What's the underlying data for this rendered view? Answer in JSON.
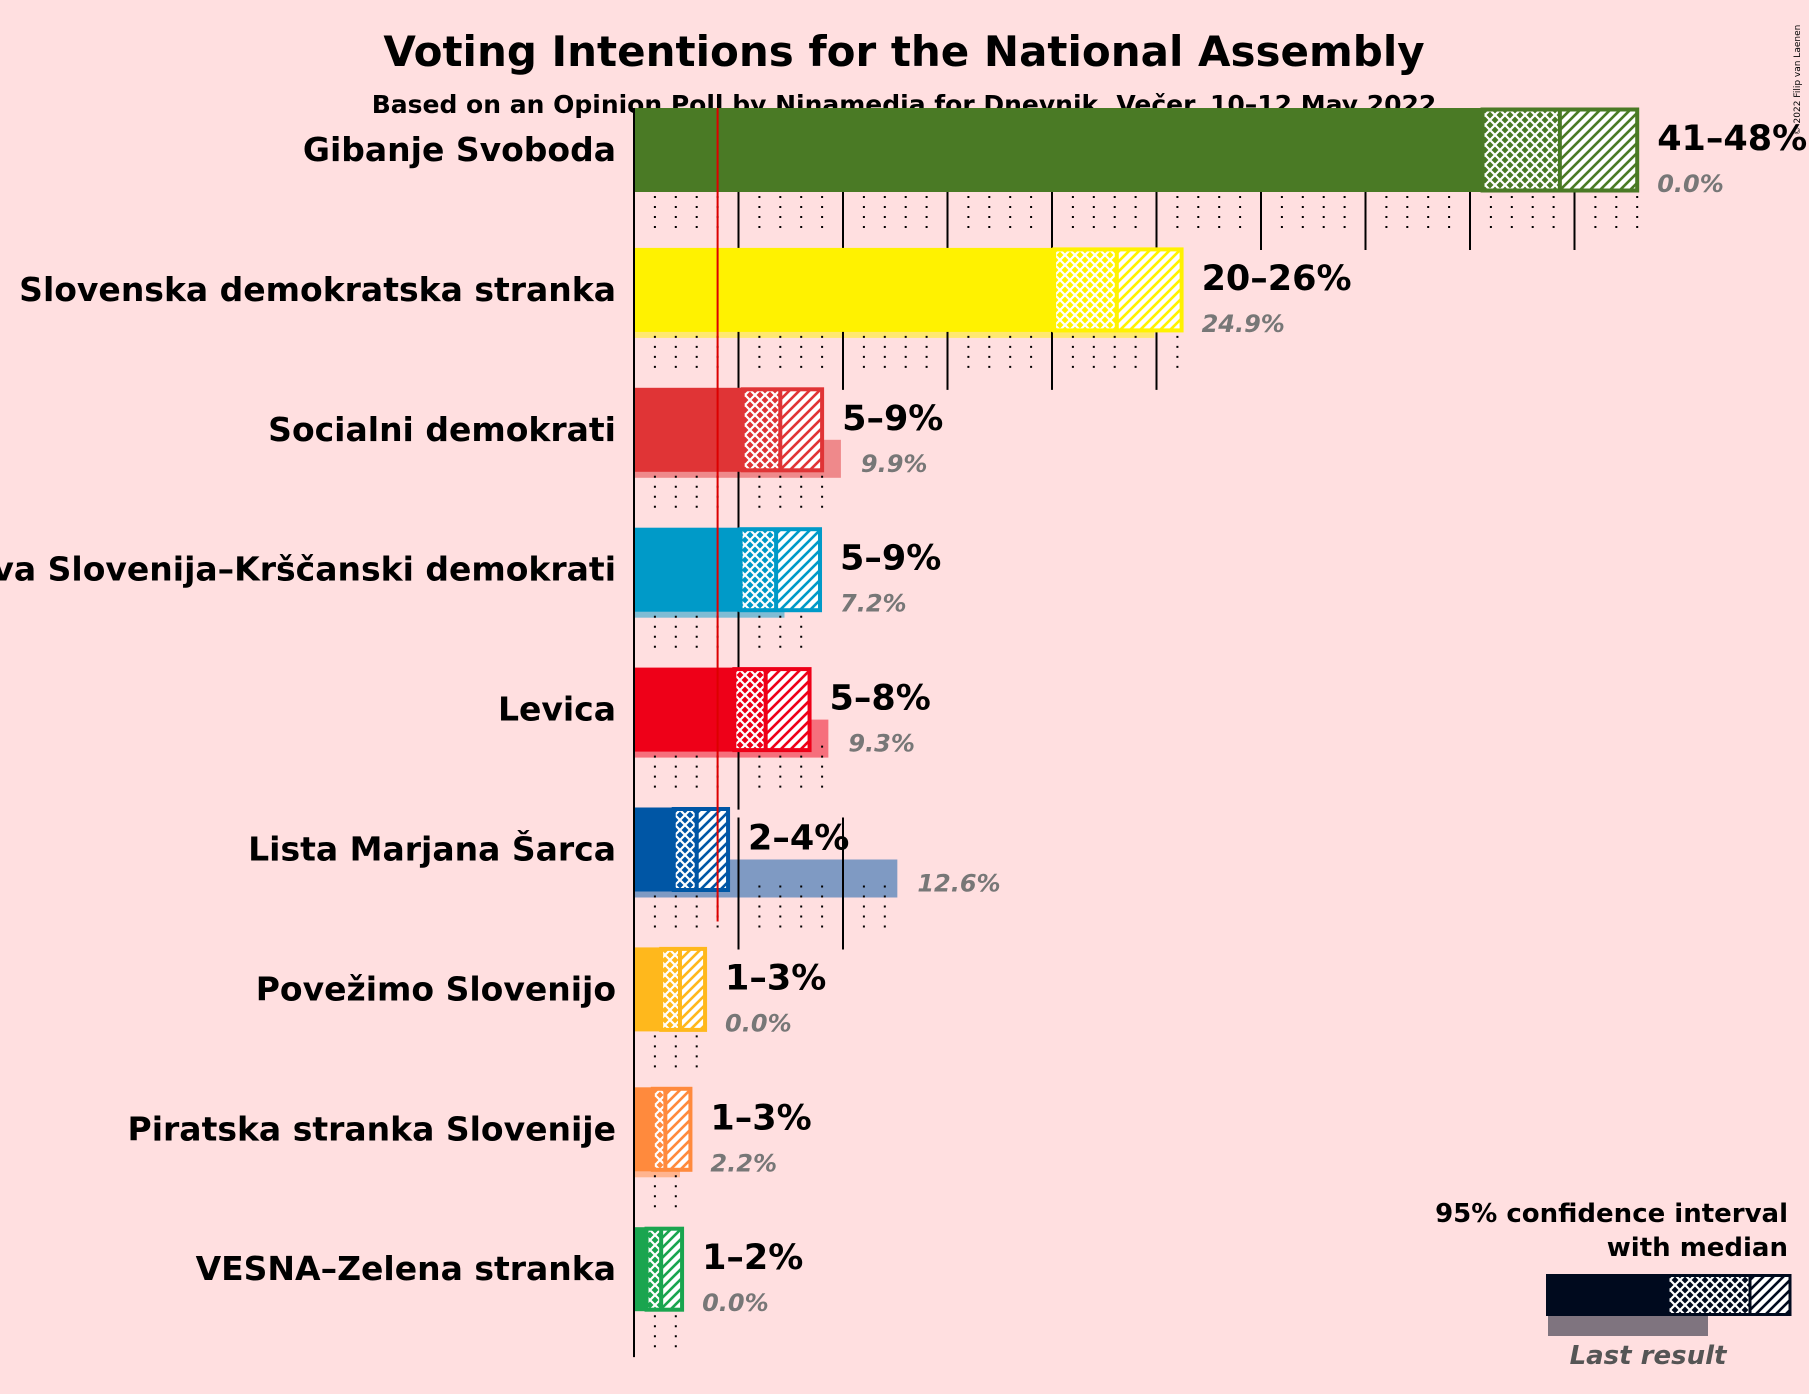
{
  "title": "Voting Intentions for the National Assembly",
  "subtitle": "Based on an Opinion Poll by Ninamedia for Dnevnik, Večer, 10–12 May 2022",
  "copyright": "© 2022 Filip van Laenen",
  "legend": {
    "ci_label_line1": "95% confidence interval",
    "ci_label_line2": "with median",
    "last_result_label": "Last result",
    "color": "#000a1e"
  },
  "chart_data": {
    "type": "bar",
    "orientation": "horizontal",
    "unit": "%",
    "threshold": 4,
    "xlim": [
      0,
      48
    ],
    "categories": [
      "Gibanje Svoboda",
      "Slovenska demokratska stranka",
      "Socialni demokrati",
      "Nova Slovenija–Krščanski demokrati",
      "Levica",
      "Lista Marjana Šarca",
      "Povežimo Slovenijo",
      "Piratska stranka Slovenije",
      "VESNA–Zelena stranka"
    ],
    "parties": [
      {
        "name": "Gibanje Svoboda",
        "color": "#4a7a25",
        "ci_low": 40.6,
        "median": 44.3,
        "ci_high": 48.0,
        "range_label": "41–48%",
        "last_result": 0.0,
        "last_label": "0.0%"
      },
      {
        "name": "Slovenska demokratska stranka",
        "color": "#fff200",
        "ci_low": 20.1,
        "median": 23.1,
        "ci_high": 26.2,
        "range_label": "20–26%",
        "last_result": 24.9,
        "last_label": "24.9%"
      },
      {
        "name": "Socialni demokrati",
        "color": "#e03436",
        "ci_low": 5.2,
        "median": 7.0,
        "ci_high": 9.0,
        "range_label": "5–9%",
        "last_result": 9.9,
        "last_label": "9.9%"
      },
      {
        "name": "Nova Slovenija–Krščanski demokrati",
        "color": "#009ac8",
        "ci_low": 5.1,
        "median": 6.8,
        "ci_high": 8.9,
        "range_label": "5–9%",
        "last_result": 7.2,
        "last_label": "7.2%"
      },
      {
        "name": "Levica",
        "color": "#ee0018",
        "ci_low": 4.8,
        "median": 6.3,
        "ci_high": 8.4,
        "range_label": "5–8%",
        "last_result": 9.3,
        "last_label": "9.3%"
      },
      {
        "name": "Lista Marjana Šarca",
        "color": "#0056a5",
        "ci_low": 1.9,
        "median": 3.0,
        "ci_high": 4.5,
        "range_label": "2–4%",
        "last_result": 12.6,
        "last_label": "12.6%"
      },
      {
        "name": "Povežimo Slovenijo",
        "color": "#ffb81c",
        "ci_low": 1.3,
        "median": 2.2,
        "ci_high": 3.4,
        "range_label": "1–3%",
        "last_result": 0.0,
        "last_label": "0.0%"
      },
      {
        "name": "Piratska stranka Slovenije",
        "color": "#ff8a3d",
        "ci_low": 0.9,
        "median": 1.5,
        "ci_high": 2.7,
        "range_label": "1–3%",
        "last_result": 2.2,
        "last_label": "2.2%"
      },
      {
        "name": "VESNA–Zelena stranka",
        "color": "#1aa54f",
        "ci_low": 0.6,
        "median": 1.3,
        "ci_high": 2.3,
        "range_label": "1–2%",
        "last_result": 0.0,
        "last_label": "0.0%"
      }
    ]
  }
}
